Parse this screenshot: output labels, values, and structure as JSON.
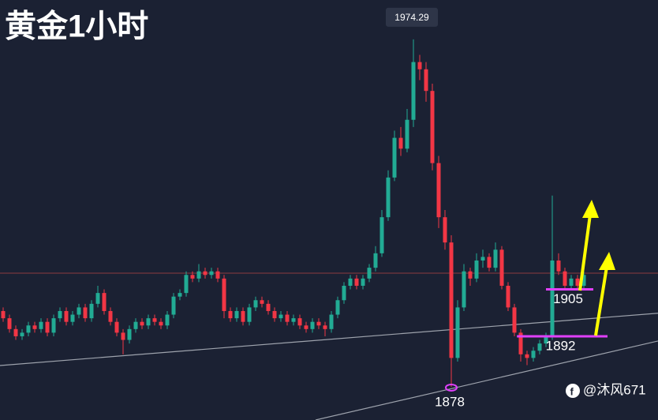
{
  "chart_data": {
    "type": "candlestick",
    "title": "黄金1小时",
    "xlim": [
      -0.5,
      103.75
    ],
    "ylim": [
      1868.8,
      1985.2
    ],
    "up_color": "#22ab94",
    "down_color": "#f23645",
    "open": [
      1899,
      1897,
      1894,
      1892,
      1893,
      1895,
      1894,
      1896,
      1893,
      1897,
      1899,
      1896,
      1898,
      1900,
      1897,
      1901,
      1904,
      1899,
      1896,
      1893,
      1891,
      1894,
      1896,
      1895,
      1897,
      1896,
      1895,
      1898,
      1903,
      1904,
      1909,
      1908,
      1910,
      1909,
      1910,
      1908,
      1899,
      1897,
      1899,
      1896,
      1900,
      1902,
      1901,
      1899,
      1897,
      1898,
      1896,
      1897,
      1895,
      1894,
      1896,
      1895,
      1894,
      1898,
      1902,
      1906,
      1908,
      1906,
      1908,
      1911,
      1915,
      1925,
      1936,
      1947,
      1944,
      1952,
      1968,
      1966,
      1960,
      1940,
      1925,
      1918,
      1886,
      1900,
      1910,
      1908,
      1913,
      1914,
      1911,
      1916,
      1906,
      1900,
      1893,
      1887,
      1886,
      1888,
      1890,
      1892,
      1913,
      1910,
      1906,
      1908,
      1906
    ],
    "high": [
      1900,
      1898,
      1895,
      1894,
      1896,
      1896,
      1897,
      1897,
      1898,
      1900,
      1900,
      1899,
      1901,
      1901,
      1902,
      1906,
      1905,
      1900,
      1897,
      1894,
      1895,
      1897,
      1897,
      1898,
      1898,
      1897,
      1899,
      1904,
      1905,
      1910,
      1910,
      1912,
      1911,
      1911,
      1911,
      1909,
      1900,
      1900,
      1900,
      1901,
      1903,
      1903,
      1902,
      1900,
      1899,
      1899,
      1898,
      1898,
      1896,
      1897,
      1897,
      1896,
      1899,
      1903,
      1907,
      1909,
      1909,
      1909,
      1912,
      1917,
      1927,
      1938,
      1949,
      1950,
      1955,
      1974.29,
      1970,
      1968,
      1962,
      1942,
      1927,
      1920,
      1902,
      1912,
      1911,
      1915,
      1916,
      1915,
      1918,
      1917,
      1907,
      1901,
      1894,
      1888,
      1889,
      1891,
      1893,
      1931,
      1915,
      1911,
      1909,
      1909,
      1910
    ],
    "low": [
      1896,
      1893,
      1891,
      1891,
      1892,
      1893,
      1893,
      1892,
      1892,
      1896,
      1895,
      1895,
      1897,
      1896,
      1896,
      1900,
      1898,
      1895,
      1892,
      1887,
      1890,
      1893,
      1894,
      1894,
      1895,
      1894,
      1894,
      1897,
      1902,
      1903,
      1907,
      1907,
      1908,
      1908,
      1907,
      1897,
      1896,
      1896,
      1895,
      1895,
      1899,
      1900,
      1898,
      1896,
      1896,
      1895,
      1895,
      1894,
      1893,
      1893,
      1894,
      1892,
      1893,
      1897,
      1901,
      1905,
      1905,
      1905,
      1907,
      1910,
      1914,
      1924,
      1935,
      1942,
      1943,
      1950,
      1963,
      1957,
      1938,
      1922,
      1916,
      1878,
      1885,
      1899,
      1906,
      1907,
      1911,
      1910,
      1910,
      1905,
      1899,
      1892,
      1885,
      1884,
      1885,
      1887,
      1889,
      1891,
      1909,
      1905,
      1905,
      1905,
      1905
    ],
    "close": [
      1897,
      1894,
      1892,
      1893,
      1895,
      1894,
      1896,
      1893,
      1897,
      1899,
      1896,
      1898,
      1900,
      1897,
      1901,
      1904,
      1899,
      1896,
      1893,
      1891,
      1894,
      1896,
      1895,
      1897,
      1896,
      1895,
      1898,
      1903,
      1904,
      1909,
      1908,
      1910,
      1909,
      1910,
      1908,
      1899,
      1897,
      1899,
      1896,
      1900,
      1902,
      1901,
      1899,
      1897,
      1898,
      1896,
      1897,
      1895,
      1894,
      1896,
      1895,
      1894,
      1898,
      1902,
      1906,
      1908,
      1906,
      1908,
      1911,
      1915,
      1925,
      1936,
      1947,
      1944,
      1952,
      1968,
      1966,
      1960,
      1940,
      1925,
      1918,
      1886,
      1900,
      1910,
      1908,
      1913,
      1914,
      1911,
      1916,
      1906,
      1900,
      1893,
      1887,
      1886,
      1888,
      1890,
      1892,
      1913,
      1910,
      1906,
      1908,
      1906,
      1909
    ],
    "peak_index": 65,
    "hline": {
      "value": 1909.5,
      "color": "#8c3b3f"
    },
    "trendlines": [
      {
        "x": [
          -0.5,
          103.75
        ],
        "y": [
          1883.9,
          1898.4
        ]
      },
      {
        "x": [
          49.5,
          103.75
        ],
        "y": [
          1868.8,
          1890.7
        ]
      }
    ],
    "levels": [
      {
        "value": 1905,
        "x": [
          86,
          93.5
        ]
      },
      {
        "value": 1892,
        "x": [
          81.4,
          95.75
        ]
      }
    ],
    "low_marker": {
      "value": 1878,
      "x": 71
    },
    "level_color": "#e040fb",
    "watermark": "@沐风671"
  }
}
